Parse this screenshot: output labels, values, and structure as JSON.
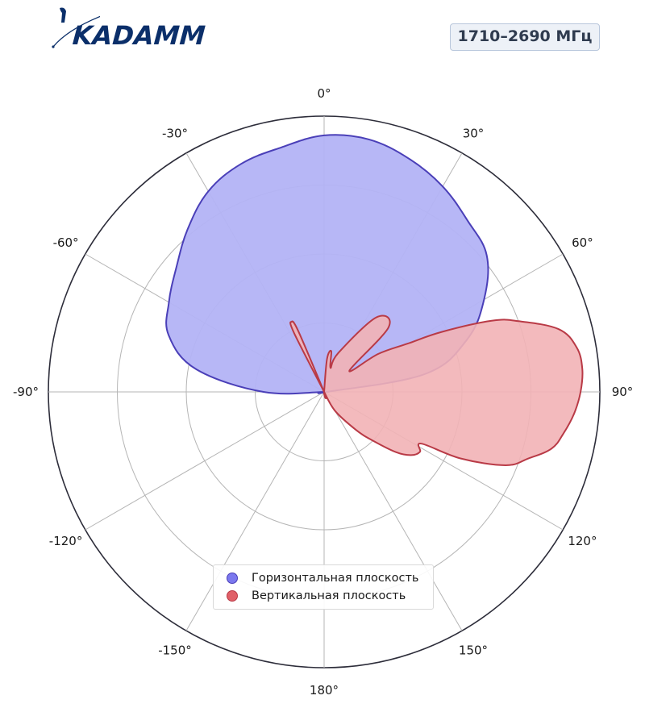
{
  "brand": {
    "logo_text": "KADAMM"
  },
  "badge": {
    "text": "1710–2690 МГц"
  },
  "colors": {
    "horizontal_fill": "#b3b3f5",
    "horizontal_edge": "#4a3fb8",
    "horizontal_marker": "#7b78ee",
    "vertical_fill": "#f2b2b6",
    "vertical_edge": "#b93a46",
    "vertical_marker": "#e06068",
    "grid": "#b5b5b5",
    "outer_ring": "#2d2d3a"
  },
  "chart_data": {
    "type": "polar-area",
    "angular_direction": "clockwise",
    "zero_location": "top",
    "radial_range": [
      0,
      1
    ],
    "radial_rings": [
      0.25,
      0.5,
      0.75,
      1.0
    ],
    "angular_ticks": [
      {
        "angle": 0,
        "label": "0°"
      },
      {
        "angle": 30,
        "label": "30°"
      },
      {
        "angle": 60,
        "label": "60°"
      },
      {
        "angle": 90,
        "label": "90°"
      },
      {
        "angle": 120,
        "label": "120°"
      },
      {
        "angle": 150,
        "label": "150°"
      },
      {
        "angle": 180,
        "label": "180°"
      },
      {
        "angle": -150,
        "label": "-150°"
      },
      {
        "angle": -120,
        "label": "-120°"
      },
      {
        "angle": -90,
        "label": "-90°"
      },
      {
        "angle": -60,
        "label": "-60°"
      },
      {
        "angle": -30,
        "label": "-30°"
      }
    ],
    "legend_position": "lower center",
    "series": [
      {
        "name": "Горизонтальная плоскость",
        "angles": [
          -100,
          -90,
          -80,
          -70,
          -60,
          -50,
          -40,
          -30,
          -20,
          -10,
          0,
          10,
          20,
          30,
          40,
          50,
          60,
          70,
          80,
          90,
          100
        ],
        "r": [
          0.0,
          0.22,
          0.47,
          0.6,
          0.65,
          0.7,
          0.77,
          0.84,
          0.88,
          0.9,
          0.93,
          0.93,
          0.9,
          0.86,
          0.81,
          0.77,
          0.67,
          0.55,
          0.37,
          0.01,
          0.0
        ]
      },
      {
        "name": "Вертикальная плоскость",
        "angles": [
          -180,
          -30,
          -27,
          -25,
          -23,
          -10,
          0,
          5,
          10,
          15,
          20,
          35,
          45,
          50,
          55,
          60,
          63,
          67,
          70,
          75,
          80,
          85,
          90,
          95,
          100,
          104,
          108,
          112,
          116,
          118,
          122,
          126,
          130,
          135,
          140,
          150,
          180
        ],
        "r": [
          0.0,
          0.0,
          0.24,
          0.28,
          0.24,
          0.0,
          0.0,
          0.12,
          0.15,
          0.09,
          0.15,
          0.33,
          0.33,
          0.12,
          0.24,
          0.35,
          0.48,
          0.66,
          0.75,
          0.88,
          0.93,
          0.94,
          0.93,
          0.91,
          0.88,
          0.85,
          0.78,
          0.71,
          0.55,
          0.4,
          0.41,
          0.39,
          0.34,
          0.25,
          0.18,
          0.08,
          0.0
        ]
      }
    ]
  }
}
